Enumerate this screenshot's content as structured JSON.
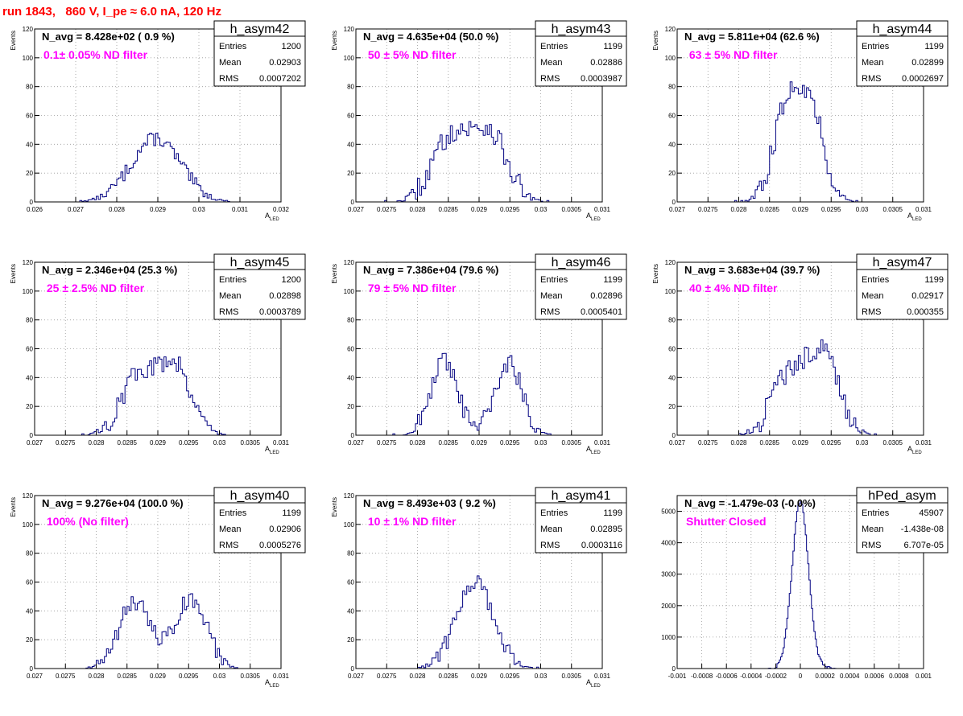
{
  "page_title": "run 1843,   860 V, I_pe ≈ 6.0 nA, 120 Hz",
  "chart_data": [
    {
      "type": "histogram",
      "name": "h_asym42",
      "navg": "N_avg = 8.428e+02 ( 0.9 %)",
      "filter": "0.1± 0.05% ND filter",
      "stats": [
        [
          "Entries",
          "1200"
        ],
        [
          "Mean",
          "0.02903"
        ],
        [
          "RMS",
          "0.0007202"
        ]
      ],
      "ylabel": "Events",
      "xlabel": "A",
      "xlabel_sub": "LED",
      "xlim": [
        0.026,
        0.032
      ],
      "ylim": [
        0,
        120
      ],
      "xticks": [
        0.026,
        0.027,
        0.028,
        0.029,
        0.03,
        0.031,
        0.032
      ],
      "xtick_labels": [
        "0.026",
        "0.027",
        "0.028",
        "0.029",
        "0.03",
        "0.031",
        "0.032"
      ],
      "yticks": [
        0,
        20,
        40,
        60,
        80,
        100,
        120
      ],
      "ytick_labels": [
        "0",
        "20",
        "40",
        "60",
        "80",
        "100",
        "120"
      ],
      "nbins": 120,
      "peaks": [
        [
          0.02895,
          0.0006,
          44
        ]
      ],
      "noise": 5
    },
    {
      "type": "histogram",
      "name": "h_asym43",
      "navg": "N_avg = 4.635e+04 (50.0 %)",
      "filter": " 50 ± 5% ND filter",
      "stats": [
        [
          "Entries",
          "1199"
        ],
        [
          "Mean",
          "0.02886"
        ],
        [
          "RMS",
          "0.0003987"
        ]
      ],
      "ylabel": "Events",
      "xlabel": "A",
      "xlabel_sub": "LED",
      "xlim": [
        0.027,
        0.031
      ],
      "ylim": [
        0,
        120
      ],
      "xticks": [
        0.027,
        0.0275,
        0.028,
        0.0285,
        0.029,
        0.0295,
        0.03,
        0.0305,
        0.031
      ],
      "xtick_labels": [
        "0.027",
        "0.0275",
        "0.028",
        "0.0285",
        "0.029",
        "0.0295",
        "0.03",
        "0.0305",
        "0.031"
      ],
      "yticks": [
        0,
        20,
        40,
        60,
        80,
        100,
        120
      ],
      "ytick_labels": [
        "0",
        "20",
        "40",
        "60",
        "80",
        "100",
        "120"
      ],
      "nbins": 120,
      "peaks": [
        [
          0.02855,
          0.0003,
          45
        ],
        [
          0.02918,
          0.00028,
          46
        ]
      ],
      "noise": 8
    },
    {
      "type": "histogram",
      "name": "h_asym44",
      "navg": "N_avg = 5.811e+04 (62.6 %)",
      "filter": " 63 ± 5% ND filter",
      "stats": [
        [
          "Entries",
          "1199"
        ],
        [
          "Mean",
          "0.02899"
        ],
        [
          "RMS",
          "0.0002697"
        ]
      ],
      "ylabel": "Events",
      "xlabel": "A",
      "xlabel_sub": "LED",
      "xlim": [
        0.027,
        0.031
      ],
      "ylim": [
        0,
        120
      ],
      "xticks": [
        0.027,
        0.0275,
        0.028,
        0.0285,
        0.029,
        0.0295,
        0.03,
        0.0305,
        0.031
      ],
      "xtick_labels": [
        "0.027",
        "0.0275",
        "0.028",
        "0.0285",
        "0.029",
        "0.0295",
        "0.03",
        "0.0305",
        "0.031"
      ],
      "yticks": [
        0,
        20,
        40,
        60,
        80,
        100,
        120
      ],
      "ytick_labels": [
        "0",
        "20",
        "40",
        "60",
        "80",
        "100",
        "120"
      ],
      "nbins": 120,
      "peaks": [
        [
          0.02878,
          0.00022,
          62
        ],
        [
          0.02917,
          0.00022,
          60
        ]
      ],
      "noise": 8
    },
    {
      "type": "histogram",
      "name": "h_asym45",
      "navg": "N_avg = 2.346e+04 (25.3 %)",
      "filter": " 25 ± 2.5% ND filter",
      "stats": [
        [
          "Entries",
          "1200"
        ],
        [
          "Mean",
          "0.02898"
        ],
        [
          "RMS",
          "0.0003789"
        ]
      ],
      "ylabel": "Events",
      "xlabel": "A",
      "xlabel_sub": "LED",
      "xlim": [
        0.027,
        0.031
      ],
      "ylim": [
        0,
        120
      ],
      "xticks": [
        0.027,
        0.0275,
        0.028,
        0.0285,
        0.029,
        0.0295,
        0.03,
        0.0305,
        0.031
      ],
      "xtick_labels": [
        "0.027",
        "0.0275",
        "0.028",
        "0.0285",
        "0.029",
        "0.0295",
        "0.03",
        "0.0305",
        "0.031"
      ],
      "yticks": [
        0,
        20,
        40,
        60,
        80,
        100,
        120
      ],
      "ytick_labels": [
        "0",
        "20",
        "40",
        "60",
        "80",
        "100",
        "120"
      ],
      "nbins": 120,
      "peaks": [
        [
          0.02868,
          0.00028,
          40
        ],
        [
          0.02928,
          0.00027,
          48
        ]
      ],
      "noise": 7
    },
    {
      "type": "histogram",
      "name": "h_asym46",
      "navg": "N_avg = 7.386e+04 (79.6 %)",
      "filter": " 79 ± 5% ND filter",
      "stats": [
        [
          "Entries",
          "1199"
        ],
        [
          "Mean",
          "0.02896"
        ],
        [
          "RMS",
          "0.0005401"
        ]
      ],
      "ylabel": "Events",
      "xlabel": "A",
      "xlabel_sub": "LED",
      "xlim": [
        0.027,
        0.031
      ],
      "ylim": [
        0,
        120
      ],
      "xticks": [
        0.027,
        0.0275,
        0.028,
        0.0285,
        0.029,
        0.0295,
        0.03,
        0.0305,
        0.031
      ],
      "xtick_labels": [
        "0.027",
        "0.0275",
        "0.028",
        "0.0285",
        "0.029",
        "0.0295",
        "0.03",
        "0.0305",
        "0.031"
      ],
      "yticks": [
        0,
        20,
        40,
        60,
        80,
        100,
        120
      ],
      "ytick_labels": [
        "0",
        "20",
        "40",
        "60",
        "80",
        "100",
        "120"
      ],
      "nbins": 120,
      "peaks": [
        [
          0.02843,
          0.00022,
          50
        ],
        [
          0.02948,
          0.00022,
          50
        ]
      ],
      "noise": 7
    },
    {
      "type": "histogram",
      "name": "h_asym47",
      "navg": "N_avg = 3.683e+04 (39.7 %)",
      "filter": " 40 ± 4% ND filter",
      "stats": [
        [
          "Entries",
          "1199"
        ],
        [
          "Mean",
          "0.02917"
        ],
        [
          "RMS",
          "0.000355"
        ]
      ],
      "ylabel": "Events",
      "xlabel": "A",
      "xlabel_sub": "LED",
      "xlim": [
        0.027,
        0.031
      ],
      "ylim": [
        0,
        120
      ],
      "xticks": [
        0.027,
        0.0275,
        0.028,
        0.0285,
        0.029,
        0.0295,
        0.03,
        0.0305,
        0.031
      ],
      "xtick_labels": [
        "0.027",
        "0.0275",
        "0.028",
        "0.0285",
        "0.029",
        "0.0295",
        "0.03",
        "0.0305",
        "0.031"
      ],
      "yticks": [
        0,
        20,
        40,
        60,
        80,
        100,
        120
      ],
      "ytick_labels": [
        "0",
        "20",
        "40",
        "60",
        "80",
        "100",
        "120"
      ],
      "nbins": 120,
      "peaks": [
        [
          0.02882,
          0.00028,
          42
        ],
        [
          0.02938,
          0.00025,
          55
        ]
      ],
      "noise": 8
    },
    {
      "type": "histogram",
      "name": "h_asym40",
      "navg": "N_avg = 9.276e+04 (100.0 %)",
      "filter": " 100% (No filter)",
      "stats": [
        [
          "Entries",
          "1199"
        ],
        [
          "Mean",
          "0.02906"
        ],
        [
          "RMS",
          "0.0005276"
        ]
      ],
      "ylabel": "Events",
      "xlabel": "A",
      "xlabel_sub": "LED",
      "xlim": [
        0.027,
        0.031
      ],
      "ylim": [
        0,
        120
      ],
      "xticks": [
        0.027,
        0.0275,
        0.028,
        0.0285,
        0.029,
        0.0295,
        0.03,
        0.0305,
        0.031
      ],
      "xtick_labels": [
        "0.027",
        "0.0275",
        "0.028",
        "0.0285",
        "0.029",
        "0.0295",
        "0.03",
        "0.0305",
        "0.031"
      ],
      "yticks": [
        0,
        20,
        40,
        60,
        80,
        100,
        120
      ],
      "ytick_labels": [
        "0",
        "20",
        "40",
        "60",
        "80",
        "100",
        "120"
      ],
      "nbins": 120,
      "peaks": [
        [
          0.02863,
          0.00027,
          45
        ],
        [
          0.02954,
          0.00025,
          48
        ]
      ],
      "noise": 7
    },
    {
      "type": "histogram",
      "name": "h_asym41",
      "navg": "N_avg = 8.493e+03 ( 9.2 %)",
      "filter": " 10 ± 1% ND filter",
      "stats": [
        [
          "Entries",
          "1199"
        ],
        [
          "Mean",
          "0.02895"
        ],
        [
          "RMS",
          "0.0003116"
        ]
      ],
      "ylabel": "Events",
      "xlabel": "A",
      "xlabel_sub": "LED",
      "xlim": [
        0.027,
        0.031
      ],
      "ylim": [
        0,
        120
      ],
      "xticks": [
        0.027,
        0.0275,
        0.028,
        0.0285,
        0.029,
        0.0295,
        0.03,
        0.0305,
        0.031
      ],
      "xtick_labels": [
        "0.027",
        "0.0275",
        "0.028",
        "0.0285",
        "0.029",
        "0.0295",
        "0.03",
        "0.0305",
        "0.031"
      ],
      "yticks": [
        0,
        20,
        40,
        60,
        80,
        100,
        120
      ],
      "ytick_labels": [
        "0",
        "20",
        "40",
        "60",
        "80",
        "100",
        "120"
      ],
      "nbins": 120,
      "peaks": [
        [
          0.02893,
          0.0003,
          60
        ]
      ],
      "noise": 6
    },
    {
      "type": "histogram",
      "name": "hPed_asym",
      "navg": "N_avg = -1.479e-03 (-0.0%)",
      "filter": "Shutter Closed",
      "stats": [
        [
          "Entries",
          "45907"
        ],
        [
          "Mean",
          "-1.438e-08"
        ],
        [
          "RMS",
          "6.707e-05"
        ]
      ],
      "ylabel": "",
      "xlabel": "",
      "xlabel_sub": "",
      "xlim": [
        -0.001,
        0.001
      ],
      "ylim": [
        0,
        5500
      ],
      "xticks": [
        -0.001,
        -0.0008,
        -0.0006,
        -0.0004,
        -0.0002,
        0,
        0.0002,
        0.0004,
        0.0006,
        0.0008,
        0.001
      ],
      "xtick_labels": [
        "-0.001",
        "-0.0008",
        "-0.0006",
        "-0.0004",
        "-0.0002",
        "0",
        "0.0002",
        "0.0004",
        "0.0006",
        "0.0008",
        "0.001"
      ],
      "yticks": [
        0,
        1000,
        2000,
        3000,
        4000,
        5000
      ],
      "ytick_labels": [
        "0",
        "1000",
        "2000",
        "3000",
        "4000",
        "5000"
      ],
      "nbins": 200,
      "peaks": [
        [
          0.0,
          6.7e-05,
          5300
        ]
      ],
      "noise": 60
    }
  ]
}
